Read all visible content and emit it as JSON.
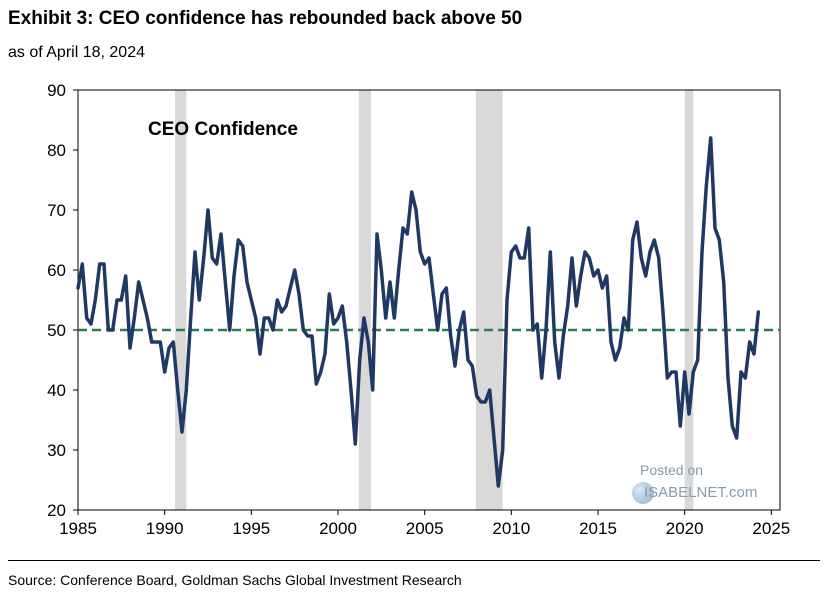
{
  "header": {
    "title": "Exhibit 3: CEO confidence has rebounded back above 50",
    "subtitle": "as of April 18, 2024"
  },
  "footer": {
    "source": "Source: Conference Board, Goldman Sachs Global Investment Research"
  },
  "watermark": {
    "line1": "Posted on",
    "line2": "ISABELNET.com"
  },
  "chart_data": {
    "type": "line",
    "title": "CEO Confidence",
    "xlim": [
      1985,
      2025.5
    ],
    "ylim": [
      20,
      90
    ],
    "x_ticks": [
      1985,
      1990,
      1995,
      2000,
      2005,
      2010,
      2015,
      2020,
      2025
    ],
    "y_ticks": [
      20,
      30,
      40,
      50,
      60,
      70,
      80,
      90
    ],
    "reference_line": {
      "y": 50,
      "style": "dashed",
      "color": "#2e7d4f"
    },
    "recession_bands": [
      [
        1990.6,
        1991.25
      ],
      [
        2001.2,
        2001.9
      ],
      [
        2007.95,
        2009.5
      ],
      [
        2020.0,
        2020.5
      ]
    ],
    "series": [
      {
        "name": "CEO Confidence",
        "color": "#1f3864",
        "points": [
          [
            1985.0,
            57
          ],
          [
            1985.25,
            61
          ],
          [
            1985.5,
            52
          ],
          [
            1985.75,
            51
          ],
          [
            1986.0,
            55
          ],
          [
            1986.25,
            61
          ],
          [
            1986.5,
            61
          ],
          [
            1986.75,
            50
          ],
          [
            1987.0,
            50
          ],
          [
            1987.25,
            55
          ],
          [
            1987.5,
            55
          ],
          [
            1987.75,
            59
          ],
          [
            1988.0,
            47
          ],
          [
            1988.25,
            52
          ],
          [
            1988.5,
            58
          ],
          [
            1988.75,
            55
          ],
          [
            1989.0,
            52
          ],
          [
            1989.25,
            48
          ],
          [
            1989.5,
            48
          ],
          [
            1989.75,
            48
          ],
          [
            1990.0,
            43
          ],
          [
            1990.25,
            47
          ],
          [
            1990.5,
            48
          ],
          [
            1990.75,
            40
          ],
          [
            1991.0,
            33
          ],
          [
            1991.25,
            40
          ],
          [
            1991.5,
            52
          ],
          [
            1991.75,
            63
          ],
          [
            1992.0,
            55
          ],
          [
            1992.25,
            62
          ],
          [
            1992.5,
            70
          ],
          [
            1992.75,
            62
          ],
          [
            1993.0,
            61
          ],
          [
            1993.25,
            66
          ],
          [
            1993.5,
            58
          ],
          [
            1993.75,
            50
          ],
          [
            1994.0,
            59
          ],
          [
            1994.25,
            65
          ],
          [
            1994.5,
            64
          ],
          [
            1994.75,
            58
          ],
          [
            1995.0,
            55
          ],
          [
            1995.25,
            52
          ],
          [
            1995.5,
            46
          ],
          [
            1995.75,
            52
          ],
          [
            1996.0,
            52
          ],
          [
            1996.25,
            50
          ],
          [
            1996.5,
            55
          ],
          [
            1996.75,
            53
          ],
          [
            1997.0,
            54
          ],
          [
            1997.25,
            57
          ],
          [
            1997.5,
            60
          ],
          [
            1997.75,
            56
          ],
          [
            1998.0,
            50
          ],
          [
            1998.25,
            49
          ],
          [
            1998.5,
            49
          ],
          [
            1998.75,
            41
          ],
          [
            1999.0,
            43
          ],
          [
            1999.25,
            46
          ],
          [
            1999.5,
            56
          ],
          [
            1999.75,
            51
          ],
          [
            2000.0,
            52
          ],
          [
            2000.25,
            54
          ],
          [
            2000.5,
            48
          ],
          [
            2000.75,
            40
          ],
          [
            2001.0,
            31
          ],
          [
            2001.25,
            45
          ],
          [
            2001.5,
            52
          ],
          [
            2001.75,
            48
          ],
          [
            2002.0,
            40
          ],
          [
            2002.25,
            66
          ],
          [
            2002.5,
            60
          ],
          [
            2002.75,
            52
          ],
          [
            2003.0,
            58
          ],
          [
            2003.25,
            52
          ],
          [
            2003.5,
            60
          ],
          [
            2003.75,
            67
          ],
          [
            2004.0,
            66
          ],
          [
            2004.25,
            73
          ],
          [
            2004.5,
            70
          ],
          [
            2004.75,
            63
          ],
          [
            2005.0,
            61
          ],
          [
            2005.25,
            62
          ],
          [
            2005.5,
            56
          ],
          [
            2005.75,
            50
          ],
          [
            2006.0,
            56
          ],
          [
            2006.25,
            57
          ],
          [
            2006.5,
            49
          ],
          [
            2006.75,
            44
          ],
          [
            2007.0,
            50
          ],
          [
            2007.25,
            53
          ],
          [
            2007.5,
            45
          ],
          [
            2007.75,
            44
          ],
          [
            2008.0,
            39
          ],
          [
            2008.25,
            38
          ],
          [
            2008.5,
            38
          ],
          [
            2008.75,
            40
          ],
          [
            2009.0,
            32
          ],
          [
            2009.25,
            24
          ],
          [
            2009.5,
            30
          ],
          [
            2009.75,
            55
          ],
          [
            2010.0,
            63
          ],
          [
            2010.25,
            64
          ],
          [
            2010.5,
            62
          ],
          [
            2010.75,
            62
          ],
          [
            2011.0,
            67
          ],
          [
            2011.25,
            50
          ],
          [
            2011.5,
            51
          ],
          [
            2011.75,
            42
          ],
          [
            2012.0,
            50
          ],
          [
            2012.25,
            63
          ],
          [
            2012.5,
            48
          ],
          [
            2012.75,
            42
          ],
          [
            2013.0,
            49
          ],
          [
            2013.25,
            54
          ],
          [
            2013.5,
            62
          ],
          [
            2013.75,
            54
          ],
          [
            2014.0,
            59
          ],
          [
            2014.25,
            63
          ],
          [
            2014.5,
            62
          ],
          [
            2014.75,
            59
          ],
          [
            2015.0,
            60
          ],
          [
            2015.25,
            57
          ],
          [
            2015.5,
            59
          ],
          [
            2015.75,
            48
          ],
          [
            2016.0,
            45
          ],
          [
            2016.25,
            47
          ],
          [
            2016.5,
            52
          ],
          [
            2016.75,
            50
          ],
          [
            2017.0,
            65
          ],
          [
            2017.25,
            68
          ],
          [
            2017.5,
            62
          ],
          [
            2017.75,
            59
          ],
          [
            2018.0,
            63
          ],
          [
            2018.25,
            65
          ],
          [
            2018.5,
            62
          ],
          [
            2018.75,
            53
          ],
          [
            2019.0,
            42
          ],
          [
            2019.25,
            43
          ],
          [
            2019.5,
            43
          ],
          [
            2019.75,
            34
          ],
          [
            2020.0,
            43
          ],
          [
            2020.25,
            36
          ],
          [
            2020.5,
            43
          ],
          [
            2020.75,
            45
          ],
          [
            2021.0,
            63
          ],
          [
            2021.25,
            74
          ],
          [
            2021.5,
            82
          ],
          [
            2021.75,
            67
          ],
          [
            2022.0,
            65
          ],
          [
            2022.25,
            58
          ],
          [
            2022.5,
            42
          ],
          [
            2022.75,
            34
          ],
          [
            2023.0,
            32
          ],
          [
            2023.25,
            43
          ],
          [
            2023.5,
            42
          ],
          [
            2023.75,
            48
          ],
          [
            2024.0,
            46
          ],
          [
            2024.25,
            53
          ]
        ]
      }
    ]
  }
}
